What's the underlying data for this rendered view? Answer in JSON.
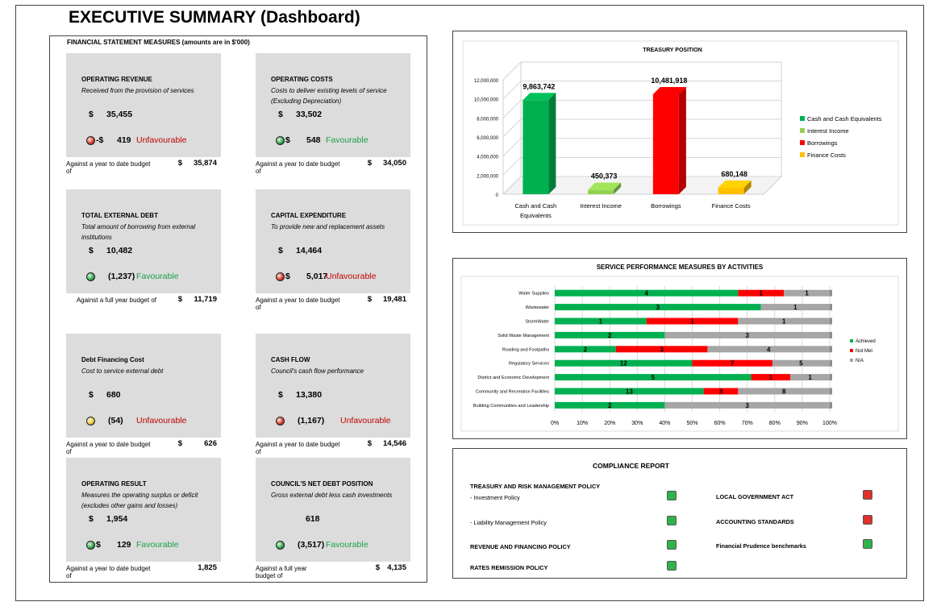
{
  "header": {
    "title": "EXECUTIVE SUMMARY (Dashboard)"
  },
  "financial": {
    "title": "FINANCIAL STATEMENT MEASURES (amounts are in $'000)",
    "cards": [
      {
        "title": "OPERATING REVENUE",
        "desc": "Received from the provision of services",
        "dollar": "$",
        "value": "35,455",
        "var_prefix": "-$",
        "variance": "419",
        "status": "Unfavourable",
        "status_type": "bad",
        "indicator": "red",
        "budget_label": "Against a year to date budget of",
        "budget_dollar": "$",
        "budget": "35,874"
      },
      {
        "title": "OPERATING COSTS",
        "desc": "Costs to deliver existing levels of service (Excluding Depreciation)",
        "dollar": "$",
        "value": "33,502",
        "var_prefix": "$",
        "variance": "548",
        "status": "Favourable",
        "status_type": "good",
        "indicator": "green",
        "budget_label": "Against a year to date budget of",
        "budget_dollar": "$",
        "budget": "34,050"
      },
      {
        "title": "TOTAL EXTERNAL DEBT",
        "desc": "Total amount of borrowing from external institutions",
        "dollar": "$",
        "value": "10,482",
        "var_prefix": "",
        "variance": "(1,237)",
        "status": "Favourable",
        "status_type": "good",
        "indicator": "green",
        "budget_label": "Against a full year budget of",
        "budget_dollar": "$",
        "budget": "11,719"
      },
      {
        "title": "CAPITAL EXPENDITURE",
        "desc": "To provide new and replacement assets",
        "dollar": "$",
        "value": "14,464",
        "var_prefix": "$",
        "variance": "5,017",
        "status": "Unfavourable",
        "status_type": "bad",
        "indicator": "red",
        "budget_label": "Against a year to date budget of",
        "budget_dollar": "$",
        "budget": "19,481"
      },
      {
        "title": "Debt Financing  Cost",
        "desc": "Cost to service external debt",
        "dollar": "$",
        "value": "680",
        "var_prefix": "",
        "variance": "(54)",
        "status": "Unfavourable",
        "status_type": "bad",
        "indicator": "yellow",
        "budget_label": "Against a year to date budget of",
        "budget_dollar": "$",
        "budget": "626"
      },
      {
        "title": "CASH FLOW",
        "desc": "Council's cash flow performance",
        "dollar": "$",
        "value": "13,380",
        "var_prefix": "",
        "variance": "(1,167)",
        "status": "Unfavourable",
        "status_type": "bad",
        "indicator": "red",
        "budget_label": "Against a year to date budget of",
        "budget_dollar": "$",
        "budget": "14,546"
      },
      {
        "title": "OPERATING RESULT",
        "desc": "Measures the operating surplus or deficit (excludes other gains and losses)",
        "dollar": "$",
        "value": "1,954",
        "var_prefix": "$",
        "variance": "129",
        "status": "Favourable",
        "status_type": "good",
        "indicator": "green",
        "budget_label": "Against a year to date budget of",
        "budget_dollar": "",
        "budget": "1,825"
      },
      {
        "title": "COUNCIL'S NET DEBT POSITION",
        "desc": "Gross external debt less cash investments",
        "dollar": "",
        "value": "618",
        "var_prefix": "",
        "variance": "(3,517)",
        "status": "Favourable",
        "status_type": "good",
        "indicator": "green",
        "budget_label": "Against a full year budget of",
        "budget_dollar": "$",
        "budget": "4,135"
      }
    ]
  },
  "chart_data": [
    {
      "type": "bar",
      "title": "TREASURY POSITION",
      "categories": [
        "Cash and Cash Equivalents",
        "Interest Income",
        "Borrowings",
        "Finance Costs"
      ],
      "category_labels": [
        [
          "Cash and Cash",
          "Equivalents"
        ],
        [
          "Interest Income"
        ],
        [
          "Borrowings"
        ],
        [
          "Finance Costs"
        ]
      ],
      "values": [
        9863742,
        450373,
        10481918,
        680148
      ],
      "data_labels": [
        "9,863,742",
        "450,373",
        "10,481,918",
        "680,148"
      ],
      "colors": [
        "#00b050",
        "#92d050",
        "#ff0000",
        "#ffc000"
      ],
      "ylim": [
        0,
        12000000
      ],
      "yticks": [
        "0",
        "2,000,000",
        "4,000,000",
        "6,000,000",
        "8,000,000",
        "10,000,000",
        "12,000,000"
      ],
      "legend": [
        "Cash and Cash Equivalents",
        "Interest Income",
        "Borrowings",
        "Finance Costs"
      ],
      "legend_position": "right"
    },
    {
      "type": "bar",
      "orientation": "horizontal",
      "stacked": "percent",
      "title": "SERVICE PERFORMANCE MEASURES BY ACTIVITIES",
      "categories": [
        "Water Supplies",
        "Wastewater",
        "StormWater",
        "Solid Waste Management",
        "Roading and Footpaths",
        "Regulatory Services",
        "District and Economic Development",
        "Community and Recreation Facilities",
        "Building Communities and Leadership"
      ],
      "series": [
        {
          "name": "Achieved",
          "color": "#00b050",
          "values": [
            4,
            3,
            1,
            2,
            2,
            12,
            5,
            13,
            2
          ]
        },
        {
          "name": "Not Met",
          "color": "#ff0000",
          "values": [
            1,
            0,
            1,
            0,
            3,
            7,
            1,
            3,
            0
          ]
        },
        {
          "name": "N/A",
          "color": "#a6a6a6",
          "values": [
            1,
            1,
            1,
            3,
            4,
            5,
            1,
            8,
            3
          ]
        }
      ],
      "xticks": [
        "0%",
        "10%",
        "20%",
        "30%",
        "40%",
        "50%",
        "60%",
        "70%",
        "80%",
        "90%",
        "100%"
      ],
      "legend_position": "right"
    }
  ],
  "compliance": {
    "title": "COMPLIANCE REPORT",
    "left": [
      {
        "header": "TREASURY AND RISK MANAGEMENT POLICY"
      },
      {
        "label": "-  Investment Policy",
        "status": "green"
      },
      {
        "label": "-  Liability Management Policy",
        "status": "green"
      },
      {
        "label": "REVENUE AND FINANCING POLICY",
        "status": "green",
        "bold": true
      },
      {
        "label": "RATES REMISSION POLICY",
        "status": "green",
        "bold": true
      }
    ],
    "right": [
      {
        "label": "LOCAL GOVERNMENT ACT",
        "status": "red"
      },
      {
        "label": "ACCOUNTING STANDARDS",
        "status": "red"
      },
      {
        "label": "Financial Prudence benchmarks",
        "status": "green"
      }
    ]
  },
  "colors": {
    "good": "#1aa04a",
    "bad": "#c00000",
    "indicator_red": "#e23b2e",
    "indicator_green": "#2fb34a",
    "indicator_yellow": "#f2d230"
  }
}
